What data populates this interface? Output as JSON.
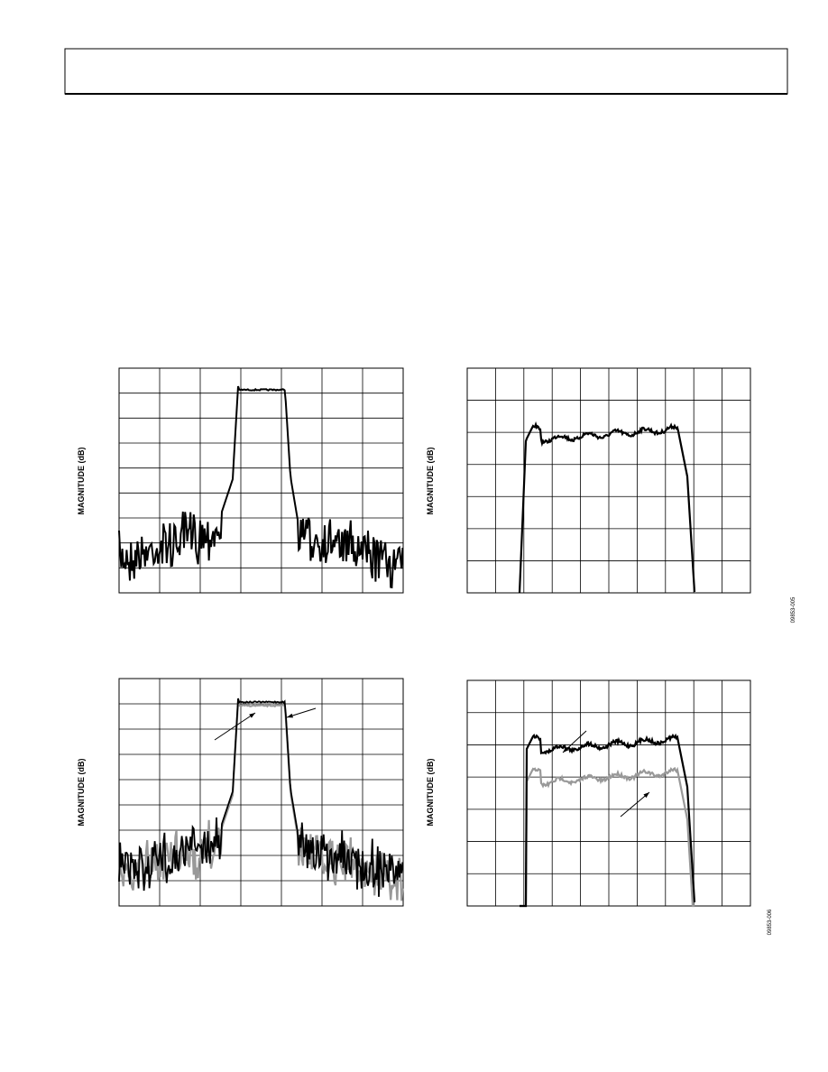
{
  "figures": [
    {
      "y_label": "MAGNITUDE (dB)"
    },
    {
      "y_label": "MAGNITUDE (dB)",
      "figure_id": "09853-005"
    },
    {
      "y_label": "MAGNITUDE (dB)"
    },
    {
      "y_label": "MAGNITUDE (dB)",
      "figure_id": "09853-006"
    }
  ]
}
